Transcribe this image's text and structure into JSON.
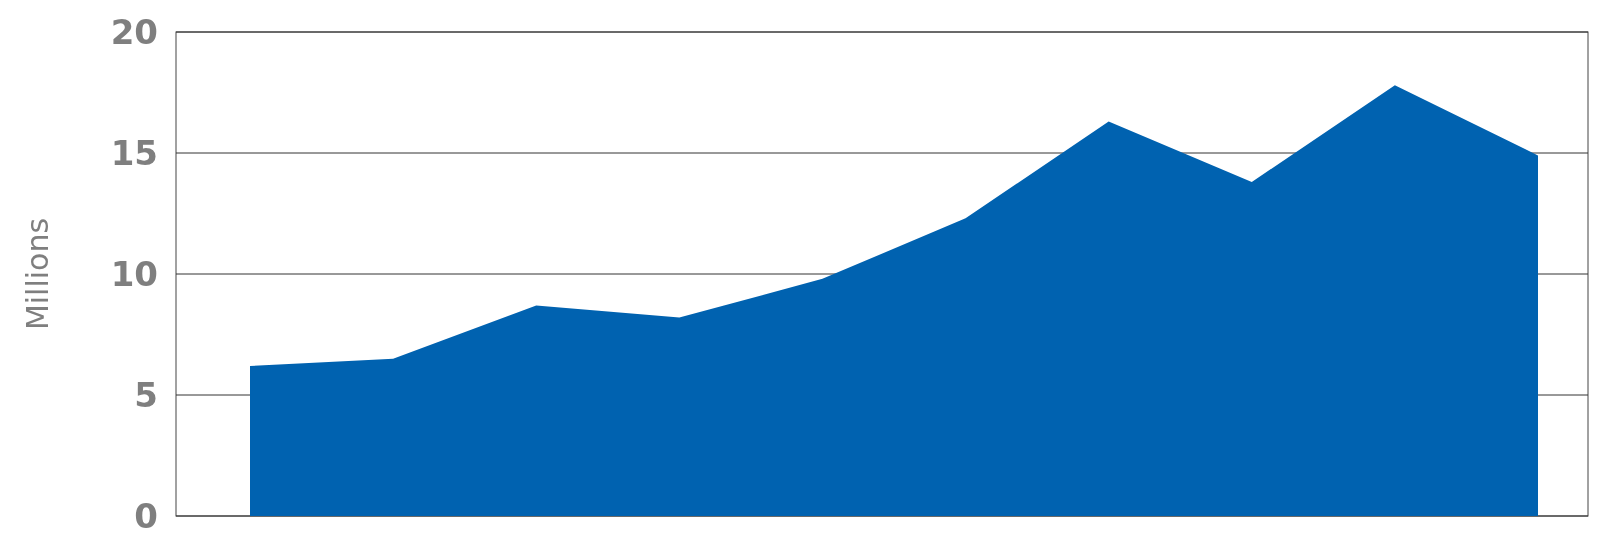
{
  "chart_data": {
    "type": "area",
    "ylabel": "Millions",
    "categories": [
      null,
      null,
      null,
      null,
      null,
      null,
      null,
      null,
      null,
      null
    ],
    "series": [
      {
        "color": "#0062b0",
        "values": [
          6.2,
          6.5,
          8.7,
          8.2,
          9.8,
          12.3,
          16.3,
          13.8,
          17.8,
          14.9
        ]
      }
    ],
    "ylim": [
      0,
      20
    ],
    "yticks": [
      0,
      5,
      10,
      15,
      20
    ],
    "grid": "y"
  }
}
